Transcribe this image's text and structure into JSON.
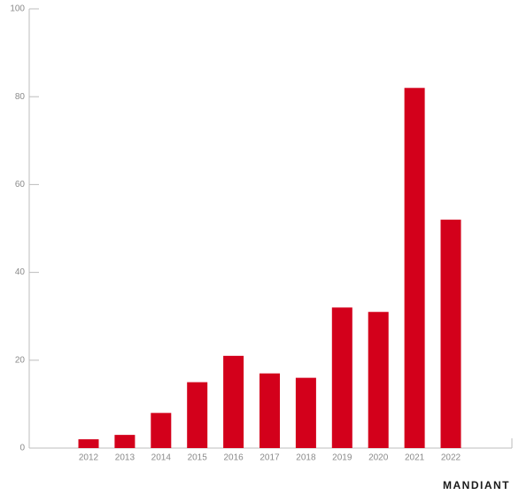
{
  "chart_data": {
    "type": "bar",
    "brand": "MANDIANT",
    "categories": [
      "2012",
      "2013",
      "2014",
      "2015",
      "2016",
      "2017",
      "2018",
      "2019",
      "2020",
      "2021",
      "2022"
    ],
    "values": [
      2,
      3,
      8,
      15,
      21,
      17,
      16,
      32,
      31,
      82,
      52
    ],
    "color": "#d3001b",
    "ylim": [
      0,
      100
    ],
    "yticks": [
      0,
      20,
      40,
      60,
      80,
      100
    ],
    "grid": false
  }
}
